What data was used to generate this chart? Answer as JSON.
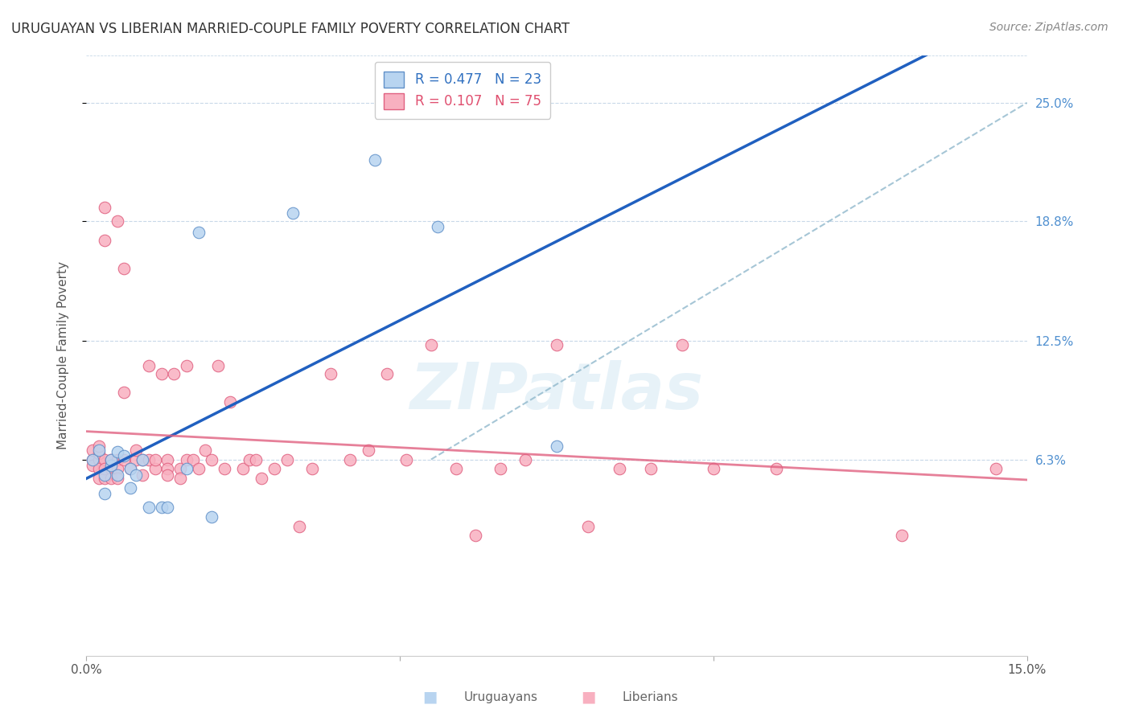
{
  "title": "URUGUAYAN VS LIBERIAN MARRIED-COUPLE FAMILY POVERTY CORRELATION CHART",
  "source": "Source: ZipAtlas.com",
  "ylabel": "Married-Couple Family Poverty",
  "xlim": [
    0.0,
    0.15
  ],
  "ylim": [
    -0.04,
    0.275
  ],
  "right_y_ticks": [
    0.063,
    0.125,
    0.188,
    0.25
  ],
  "right_y_tick_labels": [
    "6.3%",
    "12.5%",
    "18.8%",
    "25.0%"
  ],
  "watermark": "ZIPatlas",
  "legend_entry_1": "R = 0.477   N = 23",
  "legend_entry_2": "R = 0.107   N = 75",
  "uruguayan_scatter_face": "#b8d4f0",
  "uruguayan_scatter_edge": "#6090c8",
  "liberian_scatter_face": "#f8b0c0",
  "liberian_scatter_edge": "#e06080",
  "uruguayan_line_color": "#2060c0",
  "liberian_line_color": "#e06080",
  "ref_line_color": "#90b8cc",
  "uruguayan_points_x": [
    0.001,
    0.002,
    0.003,
    0.003,
    0.004,
    0.004,
    0.005,
    0.005,
    0.006,
    0.007,
    0.007,
    0.008,
    0.009,
    0.01,
    0.012,
    0.013,
    0.016,
    0.018,
    0.02,
    0.033,
    0.046,
    0.056,
    0.075
  ],
  "uruguayan_points_y": [
    0.063,
    0.068,
    0.055,
    0.045,
    0.06,
    0.063,
    0.067,
    0.055,
    0.065,
    0.058,
    0.048,
    0.055,
    0.063,
    0.038,
    0.038,
    0.038,
    0.058,
    0.182,
    0.033,
    0.192,
    0.22,
    0.185,
    0.07
  ],
  "liberian_points_x": [
    0.001,
    0.001,
    0.001,
    0.002,
    0.002,
    0.002,
    0.002,
    0.002,
    0.003,
    0.003,
    0.003,
    0.003,
    0.003,
    0.004,
    0.004,
    0.004,
    0.005,
    0.005,
    0.005,
    0.005,
    0.006,
    0.006,
    0.006,
    0.007,
    0.008,
    0.008,
    0.009,
    0.009,
    0.01,
    0.01,
    0.011,
    0.011,
    0.012,
    0.013,
    0.013,
    0.013,
    0.014,
    0.015,
    0.015,
    0.016,
    0.016,
    0.017,
    0.018,
    0.019,
    0.02,
    0.021,
    0.022,
    0.023,
    0.025,
    0.026,
    0.027,
    0.028,
    0.03,
    0.032,
    0.034,
    0.036,
    0.039,
    0.042,
    0.045,
    0.048,
    0.051,
    0.055,
    0.059,
    0.062,
    0.066,
    0.07,
    0.075,
    0.08,
    0.085,
    0.09,
    0.095,
    0.1,
    0.11,
    0.13,
    0.145
  ],
  "liberian_points_y": [
    0.063,
    0.06,
    0.068,
    0.063,
    0.058,
    0.053,
    0.066,
    0.07,
    0.195,
    0.063,
    0.053,
    0.058,
    0.178,
    0.063,
    0.058,
    0.053,
    0.063,
    0.058,
    0.053,
    0.188,
    0.098,
    0.163,
    0.063,
    0.058,
    0.063,
    0.068,
    0.063,
    0.055,
    0.112,
    0.063,
    0.058,
    0.063,
    0.108,
    0.063,
    0.058,
    0.055,
    0.108,
    0.058,
    0.053,
    0.112,
    0.063,
    0.063,
    0.058,
    0.068,
    0.063,
    0.112,
    0.058,
    0.093,
    0.058,
    0.063,
    0.063,
    0.053,
    0.058,
    0.063,
    0.028,
    0.058,
    0.108,
    0.063,
    0.068,
    0.108,
    0.063,
    0.123,
    0.058,
    0.023,
    0.058,
    0.063,
    0.123,
    0.028,
    0.058,
    0.058,
    0.123,
    0.058,
    0.058,
    0.023,
    0.058
  ],
  "uruguayan_line_x0": 0.0,
  "uruguayan_line_x1": 0.15,
  "liberian_line_x0": 0.0,
  "liberian_line_x1": 0.15,
  "ref_line_x0": 0.055,
  "ref_line_y0": 0.063,
  "ref_line_x1": 0.15,
  "ref_line_y1": 0.25
}
